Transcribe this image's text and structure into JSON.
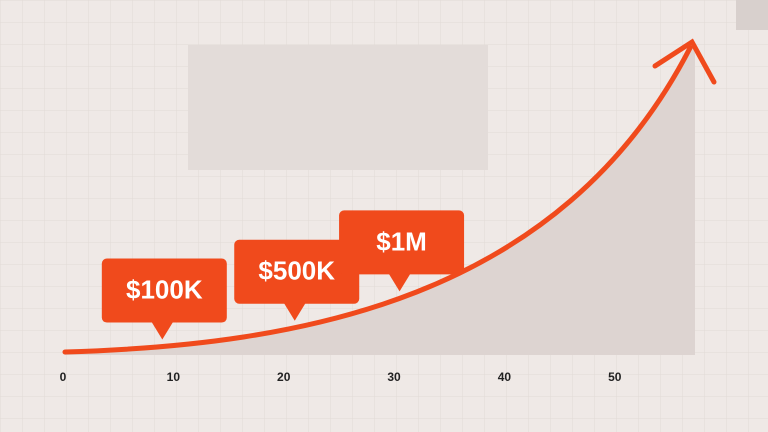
{
  "chart_data": {
    "type": "line",
    "xlim": [
      0,
      57
    ],
    "xticks": [
      0,
      10,
      20,
      30,
      40,
      50
    ],
    "color": "#f04a1c",
    "annotations": [
      {
        "x": 9,
        "value": 100000,
        "label": "$100K"
      },
      {
        "x": 21,
        "value": 500000,
        "label": "$500K"
      },
      {
        "x": 30.5,
        "value": 1000000,
        "label": "$1M"
      }
    ]
  }
}
